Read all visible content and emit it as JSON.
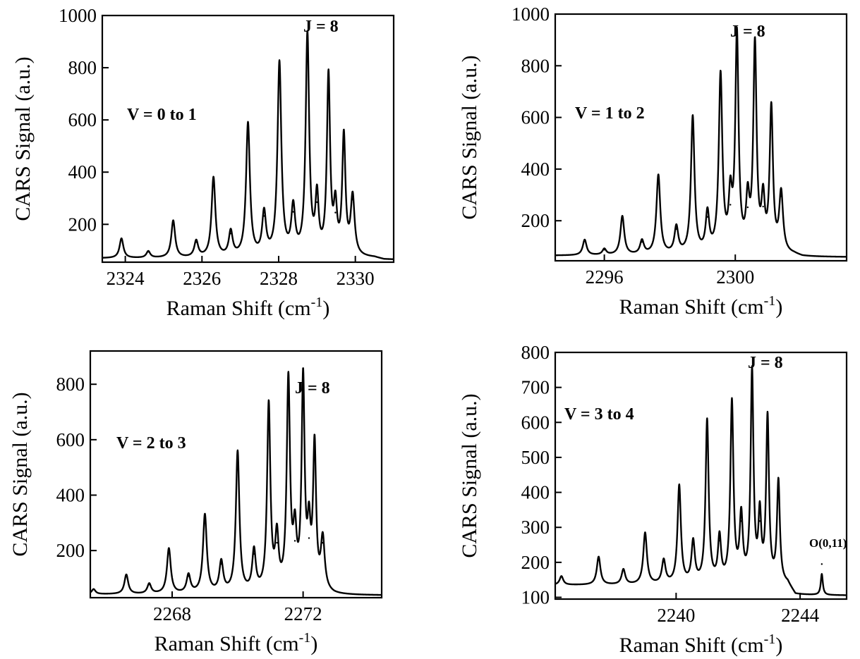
{
  "chart_data": [
    {
      "type": "line",
      "annotation_band": "V = 0 to 1",
      "annotation_peak": "J = 8",
      "xlabel": "Raman Shift (cm",
      "xlabel_sup": "-1",
      "xlabel_close": ")",
      "ylabel": "CARS Signal (a.u.)",
      "xlim": [
        2323.4,
        2331
      ],
      "ylim": [
        55,
        1000
      ],
      "xticks": [
        2324,
        2326,
        2328,
        2330
      ],
      "yticks": [
        200,
        400,
        600,
        800,
        1000
      ],
      "baseline": 70,
      "tail_end": 2330.5,
      "peaks": [
        {
          "x": 2323.9,
          "y": 145,
          "w": 0.06
        },
        {
          "x": 2324.6,
          "y": 95,
          "w": 0.06
        },
        {
          "x": 2325.25,
          "y": 212,
          "w": 0.06
        },
        {
          "x": 2325.85,
          "y": 132,
          "w": 0.06
        },
        {
          "x": 2326.3,
          "y": 375,
          "w": 0.06
        },
        {
          "x": 2326.75,
          "y": 165,
          "w": 0.06
        },
        {
          "x": 2327.2,
          "y": 580,
          "w": 0.06
        },
        {
          "x": 2327.62,
          "y": 232,
          "w": 0.06
        },
        {
          "x": 2328.02,
          "y": 810,
          "w": 0.06
        },
        {
          "x": 2328.38,
          "y": 248,
          "w": 0.06
        },
        {
          "x": 2328.75,
          "y": 915,
          "w": 0.055
        },
        {
          "x": 2329.0,
          "y": 285,
          "w": 0.05
        },
        {
          "x": 2329.3,
          "y": 755,
          "w": 0.05
        },
        {
          "x": 2329.48,
          "y": 245,
          "w": 0.05
        },
        {
          "x": 2329.7,
          "y": 525,
          "w": 0.05
        },
        {
          "x": 2329.93,
          "y": 295,
          "w": 0.06
        }
      ]
    },
    {
      "type": "line",
      "annotation_band": "V = 1 to 2",
      "annotation_peak": "J = 8",
      "xlabel": "Raman Shift (cm",
      "xlabel_sup": "-1",
      "xlabel_close": ")",
      "ylabel": "CARS Signal (a.u.)",
      "xlim": [
        2294.5,
        2303.4
      ],
      "ylim": [
        45,
        1000
      ],
      "xticks": [
        2296,
        2300
      ],
      "yticks": [
        200,
        400,
        600,
        800,
        1000
      ],
      "baseline": 65,
      "tail_end": 2301.8,
      "peaks": [
        {
          "x": 2295.4,
          "y": 125,
          "w": 0.07
        },
        {
          "x": 2296.0,
          "y": 88,
          "w": 0.07
        },
        {
          "x": 2296.55,
          "y": 215,
          "w": 0.07
        },
        {
          "x": 2297.15,
          "y": 118,
          "w": 0.07
        },
        {
          "x": 2297.65,
          "y": 372,
          "w": 0.07
        },
        {
          "x": 2298.2,
          "y": 168,
          "w": 0.07
        },
        {
          "x": 2298.7,
          "y": 595,
          "w": 0.065
        },
        {
          "x": 2299.15,
          "y": 215,
          "w": 0.065
        },
        {
          "x": 2299.55,
          "y": 750,
          "w": 0.065
        },
        {
          "x": 2299.85,
          "y": 262,
          "w": 0.06
        },
        {
          "x": 2300.05,
          "y": 900,
          "w": 0.06
        },
        {
          "x": 2300.38,
          "y": 252,
          "w": 0.06
        },
        {
          "x": 2300.6,
          "y": 865,
          "w": 0.06
        },
        {
          "x": 2300.85,
          "y": 255,
          "w": 0.06
        },
        {
          "x": 2301.1,
          "y": 620,
          "w": 0.06
        },
        {
          "x": 2301.4,
          "y": 295,
          "w": 0.07
        }
      ]
    },
    {
      "type": "line",
      "annotation_band": "V = 2 to 3",
      "annotation_peak": "J = 8",
      "xlabel": "Raman Shift (cm",
      "xlabel_sup": "-1",
      "xlabel_close": ")",
      "ylabel": "CARS Signal (a.u.)",
      "xlim": [
        2265.5,
        2274.4
      ],
      "ylim": [
        30,
        920
      ],
      "xticks": [
        2268,
        2272
      ],
      "yticks": [
        200,
        400,
        600,
        800
      ],
      "baseline": 42,
      "tail_end": 2272.7,
      "peaks": [
        {
          "x": 2265.6,
          "y": 60,
          "w": 0.07
        },
        {
          "x": 2266.6,
          "y": 112,
          "w": 0.07
        },
        {
          "x": 2267.3,
          "y": 78,
          "w": 0.07
        },
        {
          "x": 2267.9,
          "y": 205,
          "w": 0.07
        },
        {
          "x": 2268.5,
          "y": 108,
          "w": 0.07
        },
        {
          "x": 2269.0,
          "y": 325,
          "w": 0.07
        },
        {
          "x": 2269.5,
          "y": 152,
          "w": 0.07
        },
        {
          "x": 2270.0,
          "y": 550,
          "w": 0.065
        },
        {
          "x": 2270.5,
          "y": 188,
          "w": 0.065
        },
        {
          "x": 2270.95,
          "y": 715,
          "w": 0.06
        },
        {
          "x": 2271.2,
          "y": 228,
          "w": 0.06
        },
        {
          "x": 2271.55,
          "y": 800,
          "w": 0.06
        },
        {
          "x": 2271.75,
          "y": 235,
          "w": 0.06
        },
        {
          "x": 2272.0,
          "y": 800,
          "w": 0.055
        },
        {
          "x": 2272.18,
          "y": 245,
          "w": 0.055
        },
        {
          "x": 2272.35,
          "y": 560,
          "w": 0.055
        },
        {
          "x": 2272.6,
          "y": 228,
          "w": 0.07
        }
      ]
    },
    {
      "type": "line",
      "annotation_band": "V = 3 to 4",
      "annotation_peak": "J = 8",
      "annotation_extra": "O(0,11)",
      "xlabel": "Raman Shift (cm",
      "xlabel_sup": "-1",
      "xlabel_close": ")",
      "ylabel": "CARS Signal (a.u.)",
      "xlim": [
        2236.1,
        2245.5
      ],
      "ylim": [
        95,
        800
      ],
      "xticks": [
        2240,
        2244
      ],
      "yticks": [
        100,
        200,
        300,
        400,
        500,
        600,
        700,
        800
      ],
      "baseline": 135,
      "tail_end": 2243.6,
      "tail_level": 105,
      "peaks": [
        {
          "x": 2236.3,
          "y": 160,
          "w": 0.07
        },
        {
          "x": 2237.5,
          "y": 215,
          "w": 0.07
        },
        {
          "x": 2238.3,
          "y": 178,
          "w": 0.07
        },
        {
          "x": 2239.0,
          "y": 282,
          "w": 0.07
        },
        {
          "x": 2239.6,
          "y": 202,
          "w": 0.07
        },
        {
          "x": 2240.1,
          "y": 415,
          "w": 0.065
        },
        {
          "x": 2240.55,
          "y": 252,
          "w": 0.065
        },
        {
          "x": 2241.0,
          "y": 600,
          "w": 0.06
        },
        {
          "x": 2241.4,
          "y": 262,
          "w": 0.06
        },
        {
          "x": 2241.8,
          "y": 650,
          "w": 0.06
        },
        {
          "x": 2242.1,
          "y": 318,
          "w": 0.06
        },
        {
          "x": 2242.45,
          "y": 735,
          "w": 0.055
        },
        {
          "x": 2242.7,
          "y": 318,
          "w": 0.055
        },
        {
          "x": 2242.95,
          "y": 605,
          "w": 0.055
        },
        {
          "x": 2243.3,
          "y": 425,
          "w": 0.055
        },
        {
          "x": 2244.7,
          "y": 195,
          "w": 0.04
        }
      ]
    }
  ]
}
